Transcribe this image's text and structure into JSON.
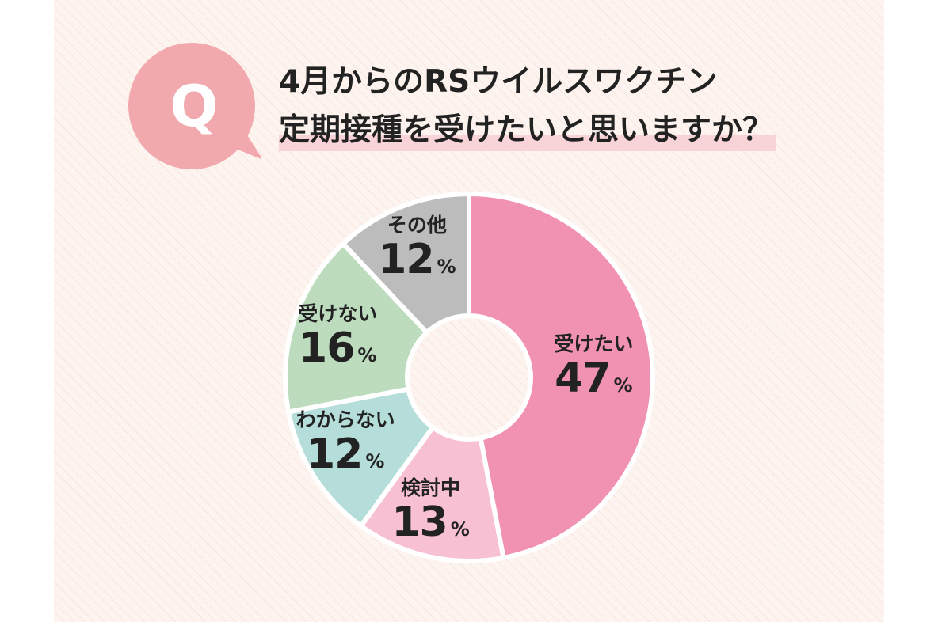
{
  "badge": {
    "letter": "Q"
  },
  "title": {
    "line1": "4月からのRSウイルスワクチン",
    "line2": "定期接種を受けたいと思いますか？"
  },
  "colors": {
    "badge": "#f2a9ae",
    "slice_want": "#f192b2",
    "slice_considering": "#f7c0d3",
    "slice_unknown": "#b5ddd9",
    "slice_dont_want": "#bcdcbd",
    "slice_other": "#bcbcbc"
  },
  "chart_data": {
    "type": "pie",
    "donut": true,
    "unit": "%",
    "slices": [
      {
        "label": "受けたい",
        "value": 47,
        "color": "#f192b2"
      },
      {
        "label": "検討中",
        "value": 13,
        "color": "#f7c0d3"
      },
      {
        "label": "わからない",
        "value": 12,
        "color": "#b5ddd9"
      },
      {
        "label": "受けない",
        "value": 16,
        "color": "#bcdcbd"
      },
      {
        "label": "その他",
        "value": 12,
        "color": "#bcbcbc"
      }
    ]
  }
}
